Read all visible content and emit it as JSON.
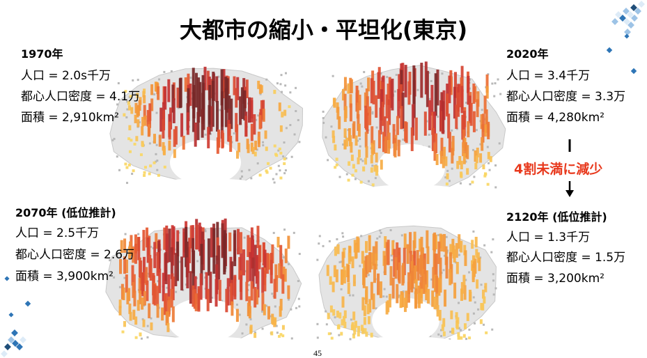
{
  "header": {
    "title": "大都市の縮小・平坦化(東京)"
  },
  "panels": [
    {
      "label": "1970年",
      "lines": [
        "人口 = 2.0s千万",
        "都心人口密度 = 4.1万",
        "面積 = 2,910km²"
      ]
    },
    {
      "label": "2020年",
      "lines": [
        "人口 = 3.4千万",
        "都心人口密度 = 3.3万",
        "面積 = 4,280km²"
      ]
    },
    {
      "label": "2070年 (低位推計)",
      "lines": [
        "人口 = 2.5千万",
        "都心人口密度 = 2.6万",
        "面積 = 3,900km²"
      ]
    },
    {
      "label": "2120年 (低位推計)",
      "lines": [
        "人口 = 1.3千万",
        "都心人口密度 = 1.5万",
        "面積 = 3,200km²"
      ]
    }
  ],
  "annotation": "4割未満に減少",
  "page_number": "45"
}
